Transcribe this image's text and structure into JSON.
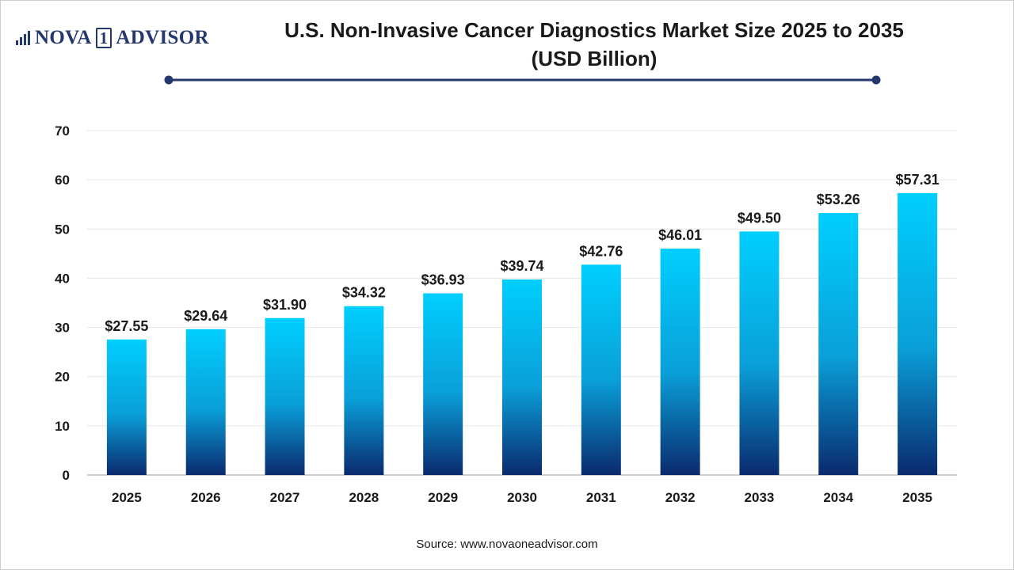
{
  "brand": {
    "name_part1": "NOVA",
    "name_digit": "1",
    "name_part2": "ADVISOR"
  },
  "chart_data": {
    "type": "bar",
    "title": "U.S. Non-Invasive Cancer Diagnostics Market Size 2025 to 2035",
    "subtitle": "(USD Billion)",
    "categories": [
      "2025",
      "2026",
      "2027",
      "2028",
      "2029",
      "2030",
      "2031",
      "2032",
      "2033",
      "2034",
      "2035"
    ],
    "values": [
      27.55,
      29.64,
      31.9,
      34.32,
      36.93,
      39.74,
      42.76,
      46.01,
      49.5,
      53.26,
      57.31
    ],
    "value_labels": [
      "$27.55",
      "$29.64",
      "$31.90",
      "$34.32",
      "$36.93",
      "$39.74",
      "$42.76",
      "$46.01",
      "$49.50",
      "$53.26",
      "$57.31"
    ],
    "ylim": [
      0,
      70
    ],
    "yticks": [
      0,
      10,
      20,
      30,
      40,
      50,
      60,
      70
    ],
    "xlabel": "",
    "ylabel": "",
    "grid": true,
    "legend": "none",
    "colors": {
      "bar_top": "#00cfff",
      "bar_bottom": "#0a2a6e",
      "grid": "#e6e6e6",
      "axis": "#bfbfbf",
      "title_rule": "#25386d"
    }
  },
  "footer": {
    "source": "Source: www.novaoneadvisor.com"
  }
}
